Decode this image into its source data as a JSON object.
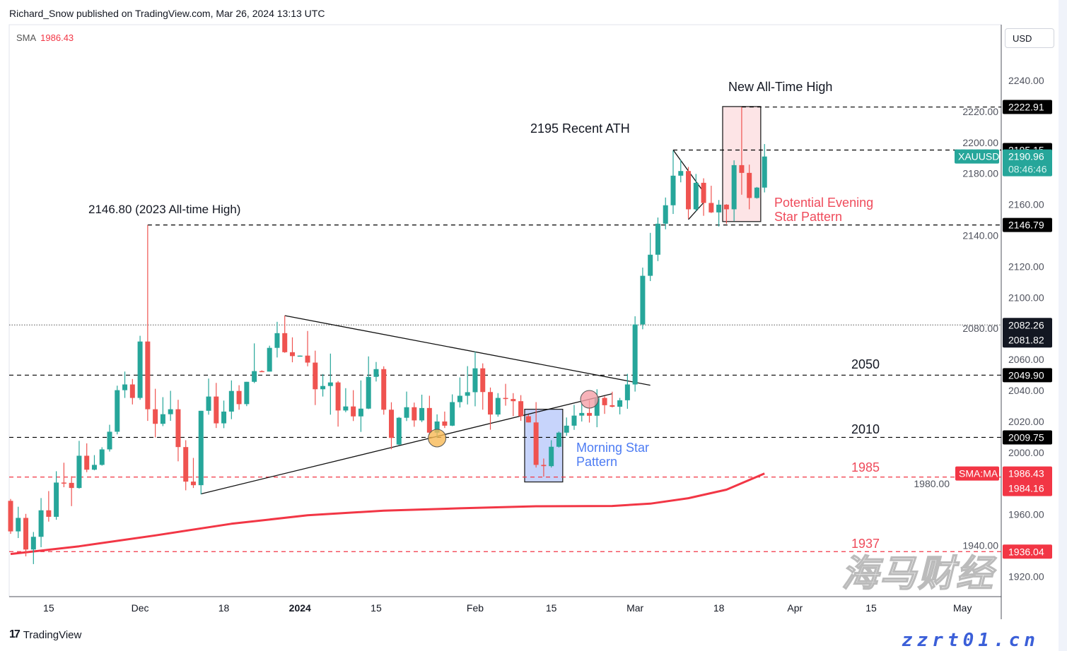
{
  "header": {
    "publisher_line": "Richard_Snow published on TradingView.com, Mar 26, 2024 13:13 UTC"
  },
  "legend": {
    "indicator": "SMA",
    "value": "1986.43"
  },
  "currency_button": "USD",
  "branding": {
    "logo_text": "TradingView"
  },
  "watermark": {
    "text_cn": "海马财经",
    "text_url": "zzrt01.cn"
  },
  "colors": {
    "up": "#26a69a",
    "down": "#ef5350",
    "sma": "#f23645",
    "level": "#000000",
    "morning_star_box": "#c7d4fb",
    "evening_star_box": "#fde4e6",
    "morning_text": "#4d7cf3",
    "evening_text": "#ef4b5b"
  },
  "annotations": {
    "new_ath": "New All-Time High",
    "recent_ath": "2195 Recent ATH",
    "ath_2023": "2146.80 (2023 All-time High)",
    "lvl_2050": "2050",
    "lvl_2010": "2010",
    "lvl_1985": "1985",
    "lvl_1937": "1937",
    "morning_star_1": "Morning Star",
    "morning_star_2": "Pattern",
    "evening_star_1": "Potential Evening",
    "evening_star_2": "Star Pattern"
  },
  "price_tags": {
    "symbol": "XAUUSD",
    "last": "2190.96",
    "countdown": "08:46:46",
    "sma_name": "SMA:MA",
    "sma_value": "1986.43",
    "sma_prev": "1984.16",
    "levels": [
      "2222.91",
      "2195.15",
      "2146.79",
      "2082.26",
      "2081.82",
      "2049.90",
      "2009.75",
      "1936.04"
    ]
  },
  "chart_data": {
    "type": "candlestick",
    "symbol": "XAUUSD",
    "timeframe": "1D",
    "ylim": [
      1907,
      2276
    ],
    "xlim": [
      "2023-11-08",
      "2024-05-07"
    ],
    "y_ticks": [
      "1920.00",
      "1940.00",
      "1960.00",
      "1980.00",
      "2000.00",
      "2020.00",
      "2040.00",
      "2060.00",
      "2080.00",
      "2100.00",
      "2120.00",
      "2140.00",
      "2160.00",
      "2180.00",
      "2200.00",
      "2220.00",
      "2240.00"
    ],
    "x_ticks": [
      {
        "label": "15",
        "date": "2023-11-15"
      },
      {
        "label": "Dec",
        "date": "2023-12-01"
      },
      {
        "label": "18",
        "date": "2023-12-18"
      },
      {
        "label": "2024",
        "date": "2024-01-01",
        "bold": true
      },
      {
        "label": "15",
        "date": "2024-01-15"
      },
      {
        "label": "Feb",
        "date": "2024-02-01"
      },
      {
        "label": "15",
        "date": "2024-02-15"
      },
      {
        "label": "Mar",
        "date": "2024-03-01"
      },
      {
        "label": "18",
        "date": "2024-03-18"
      },
      {
        "label": "Apr",
        "date": "2024-04-01"
      },
      {
        "label": "15",
        "date": "2024-04-15"
      },
      {
        "label": "May",
        "date": "2024-05-01"
      }
    ],
    "candles_fields": [
      "date",
      "open",
      "high",
      "low",
      "close"
    ],
    "candles": [
      [
        "2023-11-08",
        1968.8,
        1970,
        1947.5,
        1949.1
      ],
      [
        "2023-11-09",
        1949.1,
        1965,
        1944.8,
        1957.8
      ],
      [
        "2023-11-10",
        1957.8,
        1960.4,
        1933,
        1937.4
      ],
      [
        "2023-11-13",
        1937.4,
        1948.7,
        1928,
        1945.6
      ],
      [
        "2023-11-14",
        1945.6,
        1970.6,
        1938.9,
        1962.7
      ],
      [
        "2023-11-15",
        1962.7,
        1975.1,
        1955.4,
        1958.5
      ],
      [
        "2023-11-16",
        1958.5,
        1987.9,
        1956.6,
        1980.6
      ],
      [
        "2023-11-17",
        1980.6,
        1993.4,
        1977.6,
        1980.4
      ],
      [
        "2023-11-20",
        1980.4,
        1984.7,
        1965.4,
        1977.1
      ],
      [
        "2023-11-21",
        1977.1,
        2007.5,
        1976.7,
        1997.9
      ],
      [
        "2023-11-22",
        1997.9,
        2005.9,
        1987.3,
        1988.9
      ],
      [
        "2023-11-23",
        1988.9,
        1998.3,
        1988.5,
        1992
      ],
      [
        "2023-11-24",
        1992,
        2003.4,
        1991.5,
        2002
      ],
      [
        "2023-11-27",
        2002,
        2017.9,
        2000.6,
        2013.4
      ],
      [
        "2023-11-28",
        2013.4,
        2043.1,
        2011.7,
        2040.2
      ],
      [
        "2023-11-29",
        2040.2,
        2052.2,
        2035.2,
        2043.9
      ],
      [
        "2023-11-30",
        2043.9,
        2047.4,
        2031,
        2035.2
      ],
      [
        "2023-12-01",
        2035.2,
        2075.3,
        2034,
        2071.6
      ],
      [
        "2023-12-04",
        2071.6,
        2146.8,
        2020.4,
        2027.9
      ],
      [
        "2023-12-05",
        2027.9,
        2041.1,
        2009.7,
        2018.5
      ],
      [
        "2023-12-06",
        2018.5,
        2035.7,
        2017,
        2024.7
      ],
      [
        "2023-12-07",
        2024.7,
        2039.8,
        2020.4,
        2027.9
      ],
      [
        "2023-12-08",
        2027.9,
        2034,
        1994.3,
        2003.5
      ],
      [
        "2023-12-11",
        2003.5,
        2007.9,
        1975.6,
        1981.2
      ],
      [
        "2023-12-12",
        1981.2,
        1996.5,
        1977.1,
        1978.9
      ],
      [
        "2023-12-13",
        1978.9,
        2026.9,
        1973,
        2026.9
      ],
      [
        "2023-12-14",
        2026.9,
        2047.7,
        2024.4,
        2036.1
      ],
      [
        "2023-12-15",
        2036.1,
        2044.9,
        2015.8,
        2018.8
      ],
      [
        "2023-12-18",
        2018.8,
        2033.5,
        2015.7,
        2026.4
      ],
      [
        "2023-12-19",
        2026.4,
        2046.5,
        2021.5,
        2039.7
      ],
      [
        "2023-12-20",
        2039.7,
        2043.4,
        2027.6,
        2031.2
      ],
      [
        "2023-12-21",
        2031.2,
        2045.6,
        2029.9,
        2045.6
      ],
      [
        "2023-12-22",
        2045.6,
        2070.4,
        2044.8,
        2052.5
      ],
      [
        "2023-12-25",
        2052.5,
        2053,
        2052,
        2052.2
      ],
      [
        "2023-12-26",
        2052.2,
        2068.9,
        2052.2,
        2067.5
      ],
      [
        "2023-12-27",
        2067.5,
        2084.3,
        2061.3,
        2077
      ],
      [
        "2023-12-28",
        2077,
        2088.3,
        2064.3,
        2064.7
      ],
      [
        "2023-12-29",
        2064.7,
        2074.3,
        2058.2,
        2062.2
      ],
      [
        "2024-01-01",
        2062.2,
        2062.6,
        2062.1,
        2062.5
      ],
      [
        "2024-01-02",
        2062.5,
        2078.4,
        2055.6,
        2058
      ],
      [
        "2024-01-03",
        2058,
        2065.7,
        2030.6,
        2040.8
      ],
      [
        "2024-01-04",
        2040.8,
        2050.6,
        2036.1,
        2042.9
      ],
      [
        "2024-01-05",
        2042.9,
        2063.8,
        2024.4,
        2045.2
      ],
      [
        "2024-01-08",
        2045.2,
        2046.1,
        2016.7,
        2027.1
      ],
      [
        "2024-01-09",
        2027.1,
        2041.5,
        2026,
        2029.7
      ],
      [
        "2024-01-10",
        2029.7,
        2040.2,
        2020.3,
        2023.3
      ],
      [
        "2024-01-11",
        2023.3,
        2046.5,
        2013.3,
        2028.3
      ],
      [
        "2024-01-12",
        2028.3,
        2062,
        2028,
        2048.8
      ],
      [
        "2024-01-15",
        2048.8,
        2058.4,
        2045.8,
        2053.8
      ],
      [
        "2024-01-16",
        2053.8,
        2055.6,
        2024.4,
        2027.6
      ],
      [
        "2024-01-17",
        2027.6,
        2032.4,
        2002.1,
        2009.4
      ],
      [
        "2024-01-18",
        2005.1,
        2022.9,
        2004.8,
        2022.4
      ],
      [
        "2024-01-19",
        2022.4,
        2039.3,
        2020.3,
        2029.2
      ],
      [
        "2024-01-22",
        2029.2,
        2032.2,
        2016.6,
        2020.7
      ],
      [
        "2024-01-23",
        2020.7,
        2037.3,
        2019.6,
        2028.7
      ],
      [
        "2024-01-24",
        2028.7,
        2036.6,
        2011.3,
        2012.8
      ],
      [
        "2024-01-25",
        2012.8,
        2024.6,
        2009.4,
        2020
      ],
      [
        "2024-01-26",
        2020,
        2026.4,
        2015.8,
        2017.3
      ],
      [
        "2024-01-29",
        2017.3,
        2037.5,
        2017,
        2032.5
      ],
      [
        "2024-01-30",
        2032.5,
        2048.4,
        2029,
        2036.6
      ],
      [
        "2024-01-31",
        2036.6,
        2055.7,
        2031,
        2038.9
      ],
      [
        "2024-02-01",
        2038.9,
        2065.1,
        2029.8,
        2054.3
      ],
      [
        "2024-02-02",
        2054.3,
        2057.5,
        2027.6,
        2039
      ],
      [
        "2024-02-05",
        2039,
        2041.9,
        2014.7,
        2024.5
      ],
      [
        "2024-02-06",
        2024.5,
        2038.3,
        2023.1,
        2035.2
      ],
      [
        "2024-02-07",
        2035.2,
        2044.3,
        2030.2,
        2034.5
      ],
      [
        "2024-02-08",
        2034.5,
        2038.3,
        2023.4,
        2033.1
      ],
      [
        "2024-02-09",
        2033.1,
        2037,
        2020.4,
        2023.4
      ],
      [
        "2024-02-12",
        2023.4,
        2024.5,
        2019.4,
        2019.4
      ],
      [
        "2024-02-13",
        2019.4,
        2032.5,
        1990.3,
        1992
      ],
      [
        "2024-02-14",
        1992,
        1996.1,
        1984.4,
        1991.2
      ],
      [
        "2024-02-15",
        1991.2,
        2007.9,
        1990.3,
        2003.7
      ],
      [
        "2024-02-16",
        2003.7,
        2013.5,
        2003.2,
        2012.8
      ],
      [
        "2024-02-19",
        2012.8,
        2022.6,
        2010.8,
        2017.3
      ],
      [
        "2024-02-20",
        2017.3,
        2030.7,
        2014.6,
        2023.8
      ],
      [
        "2024-02-21",
        2023.8,
        2033.3,
        2020,
        2025.5
      ],
      [
        "2024-02-22",
        2025.5,
        2033.7,
        2019.3,
        2023.7
      ],
      [
        "2024-02-23",
        2023.7,
        2040.8,
        2016.3,
        2035.2
      ],
      [
        "2024-02-26",
        2035.2,
        2036.3,
        2024.9,
        2030.5
      ],
      [
        "2024-02-27",
        2030.5,
        2039.2,
        2029.1,
        2029.5
      ],
      [
        "2024-02-28",
        2029.5,
        2035.2,
        2024.6,
        2033.7
      ],
      [
        "2024-02-29",
        2033.7,
        2050.7,
        2028.2,
        2043.9
      ],
      [
        "2024-03-01",
        2043.9,
        2087.9,
        2039.3,
        2082.6
      ],
      [
        "2024-03-04",
        2082.6,
        2119.3,
        2079.5,
        2114
      ],
      [
        "2024-03-05",
        2114,
        2141.7,
        2110.6,
        2127.6
      ],
      [
        "2024-03-06",
        2127.6,
        2151.6,
        2123.5,
        2147.6
      ],
      [
        "2024-03-07",
        2147.6,
        2164.5,
        2144,
        2159.5
      ],
      [
        "2024-03-08",
        2159.5,
        2194.8,
        2153.9,
        2178.6
      ],
      [
        "2024-03-11",
        2178.6,
        2188.8,
        2174.3,
        2181.6
      ],
      [
        "2024-03-12",
        2181.6,
        2184.2,
        2150.8,
        2156.9
      ],
      [
        "2024-03-13",
        2156.9,
        2179.7,
        2155.7,
        2174
      ],
      [
        "2024-03-14",
        2174,
        2176.9,
        2152.7,
        2161
      ],
      [
        "2024-03-15",
        2161,
        2172.1,
        2154.5,
        2154.9
      ],
      [
        "2024-03-18",
        2154.9,
        2162.9,
        2145.8,
        2159.9
      ],
      [
        "2024-03-19",
        2159.9,
        2160.2,
        2147.5,
        2156.9
      ],
      [
        "2024-03-20",
        2156.9,
        2188.5,
        2149.3,
        2185.4
      ],
      [
        "2024-03-21",
        2185.4,
        2222.9,
        2166.3,
        2180.4
      ],
      [
        "2024-03-22",
        2180.4,
        2185.7,
        2156.9,
        2164.2
      ],
      [
        "2024-03-25",
        2164.2,
        2171.3,
        2163.8,
        2170.9
      ],
      [
        "2024-03-26",
        2170.9,
        2199,
        2167.8,
        2190.96
      ]
    ],
    "sma": [
      [
        "2023-11-08",
        1934.5
      ],
      [
        "2023-11-21",
        1939.5
      ],
      [
        "2023-12-05",
        1946.5
      ],
      [
        "2023-12-19",
        1954
      ],
      [
        "2024-01-02",
        1959.5
      ],
      [
        "2024-01-16",
        1962.5
      ],
      [
        "2024-01-30",
        1964
      ],
      [
        "2024-02-13",
        1965.3
      ],
      [
        "2024-02-27",
        1965.5
      ],
      [
        "2024-03-05",
        1967
      ],
      [
        "2024-03-12",
        1970.5
      ],
      [
        "2024-03-19",
        1976
      ],
      [
        "2024-03-26",
        1986.43
      ]
    ],
    "horizontal_levels": [
      {
        "price": 2222.91,
        "style": "dashed",
        "from": "2024-03-21"
      },
      {
        "price": 2195.15,
        "style": "dashed",
        "from": "2024-03-08"
      },
      {
        "price": 2146.79,
        "style": "dashed",
        "from": "2023-12-04"
      },
      {
        "price": 2082.26,
        "style": "dotted"
      },
      {
        "price": 2049.9,
        "style": "dashed"
      },
      {
        "price": 2009.75,
        "style": "dashed"
      },
      {
        "price": 1984.16,
        "style": "dashed",
        "color": "sma"
      },
      {
        "price": 1936.04,
        "style": "dashed",
        "color": "sma"
      }
    ],
    "trendlines": [
      {
        "from": [
          "2023-12-28",
          2088.3
        ],
        "to": [
          "2024-03-05",
          2043.4
        ]
      },
      {
        "from": [
          "2023-12-13",
          1973.3
        ],
        "to": [
          "2024-02-27",
          2037.9
        ]
      },
      {
        "from": [
          "2024-03-08",
          2195.2
        ],
        "to": [
          "2024-03-14",
          2168.1
        ]
      },
      {
        "from": [
          "2024-03-12",
          2150.3
        ],
        "to": [
          "2024-03-14",
          2161.2
        ]
      }
    ],
    "boxes": [
      {
        "name": "morning-star",
        "from": "2024-02-12",
        "to": "2024-02-16",
        "top": 2027.9,
        "bottom": 1981
      },
      {
        "name": "evening-star",
        "from": "2024-03-19",
        "to": "2024-03-25",
        "top": 2223.2,
        "bottom": 2149
      }
    ],
    "markers": [
      {
        "name": "support-touch",
        "date": "2024-01-25",
        "price": 2009.3,
        "color": "#f7b955"
      },
      {
        "name": "retest",
        "date": "2024-02-22",
        "price": 2034.3,
        "color": "#f5a0a8"
      }
    ]
  }
}
